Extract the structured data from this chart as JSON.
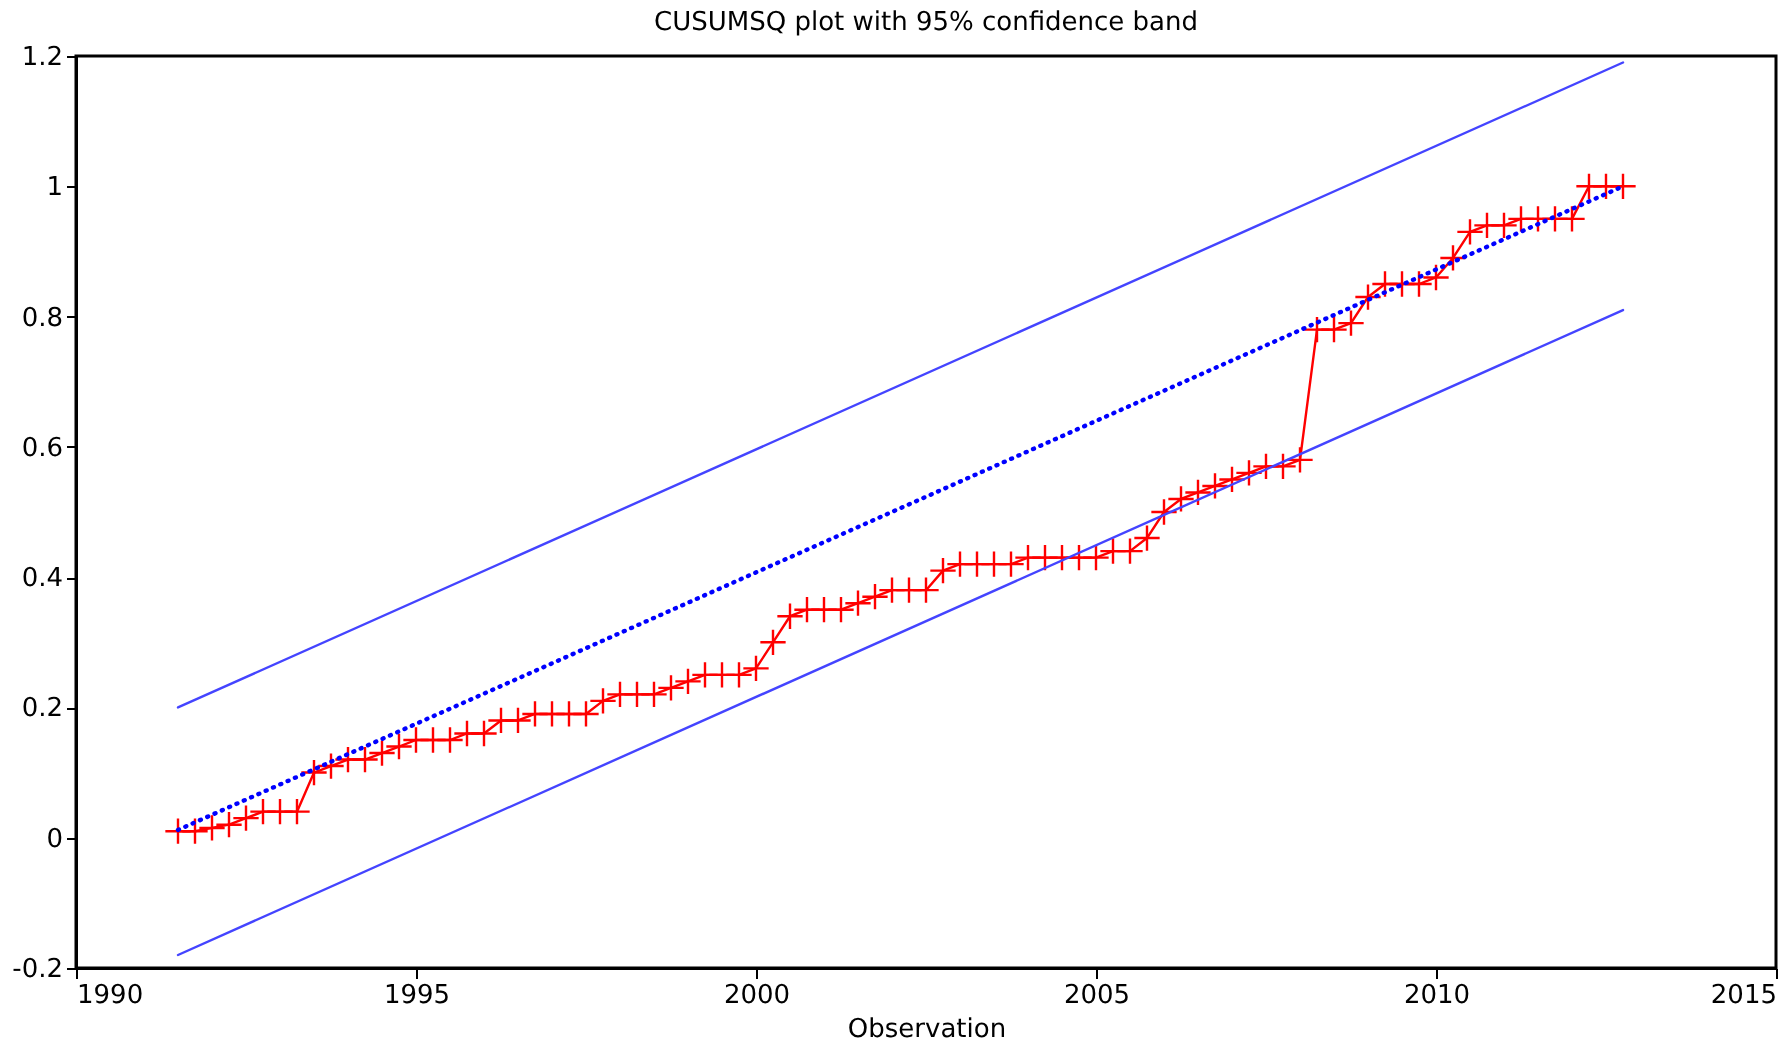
{
  "chart_data": {
    "type": "line",
    "title": "CUSUMSQ plot with 95% confidence band",
    "xlabel": "Observation",
    "xlim": [
      1990,
      2015
    ],
    "xticks": [
      1990,
      1995,
      2000,
      2005,
      2010,
      2015
    ],
    "ylim": [
      -0.2,
      1.2
    ],
    "yticks": [
      -0.2,
      0,
      0.2,
      0.4,
      0.6,
      0.8,
      1,
      1.2
    ],
    "grid": false,
    "series": [
      {
        "color": "#ff0000",
        "marker": "cross",
        "line_style": "solid",
        "x": [
          1991.5,
          1991.75,
          1992,
          1992.25,
          1992.5,
          1992.75,
          1993,
          1993.25,
          1993.5,
          1993.75,
          1994,
          1994.25,
          1994.5,
          1994.75,
          1995,
          1995.25,
          1995.5,
          1995.75,
          1996,
          1996.25,
          1996.5,
          1996.75,
          1997,
          1997.25,
          1997.5,
          1997.75,
          1998,
          1998.25,
          1998.5,
          1998.75,
          1999,
          1999.25,
          1999.5,
          1999.75,
          2000,
          2000.25,
          2000.5,
          2000.75,
          2001,
          2001.25,
          2001.5,
          2001.75,
          2002,
          2002.25,
          2002.5,
          2002.75,
          2003,
          2003.25,
          2003.5,
          2003.75,
          2004,
          2004.25,
          2004.5,
          2004.75,
          2005,
          2005.25,
          2005.5,
          2005.75,
          2006,
          2006.25,
          2006.5,
          2006.75,
          2007,
          2007.25,
          2007.5,
          2007.75,
          2008,
          2008.25,
          2008.5,
          2008.75,
          2009,
          2009.25,
          2009.5,
          2009.75,
          2010,
          2010.25,
          2010.5,
          2010.75,
          2011,
          2011.25,
          2011.5,
          2011.75,
          2012,
          2012.25,
          2012.5,
          2012.75
        ],
        "values": [
          0.01,
          0.01,
          0.015,
          0.02,
          0.03,
          0.04,
          0.04,
          0.04,
          0.1,
          0.11,
          0.12,
          0.12,
          0.13,
          0.14,
          0.15,
          0.15,
          0.15,
          0.16,
          0.16,
          0.18,
          0.18,
          0.19,
          0.19,
          0.19,
          0.19,
          0.21,
          0.22,
          0.22,
          0.22,
          0.23,
          0.24,
          0.25,
          0.25,
          0.25,
          0.26,
          0.3,
          0.34,
          0.35,
          0.35,
          0.35,
          0.36,
          0.37,
          0.38,
          0.38,
          0.38,
          0.41,
          0.42,
          0.42,
          0.42,
          0.42,
          0.43,
          0.43,
          0.43,
          0.43,
          0.43,
          0.44,
          0.44,
          0.46,
          0.5,
          0.52,
          0.53,
          0.54,
          0.55,
          0.56,
          0.57,
          0.57,
          0.58,
          0.78,
          0.78,
          0.79,
          0.83,
          0.85,
          0.85,
          0.85,
          0.86,
          0.89,
          0.93,
          0.94,
          0.94,
          0.95,
          0.95,
          0.95,
          0.95,
          1.0,
          1.0,
          1.0
        ]
      },
      {
        "color": "#0000ff",
        "marker": "none",
        "line_style": "dotted",
        "x": [
          1991.5,
          2012.75
        ],
        "values": [
          0.012,
          1
        ]
      },
      {
        "color": "#4444ff",
        "marker": "none",
        "line_style": "solid",
        "x": [
          1991.5,
          2012.75
        ],
        "values": [
          0.2,
          1.19
        ]
      },
      {
        "color": "#4444ff",
        "marker": "none",
        "line_style": "solid",
        "x": [
          1991.5,
          2012.75
        ],
        "values": [
          -0.18,
          0.81
        ]
      }
    ]
  }
}
